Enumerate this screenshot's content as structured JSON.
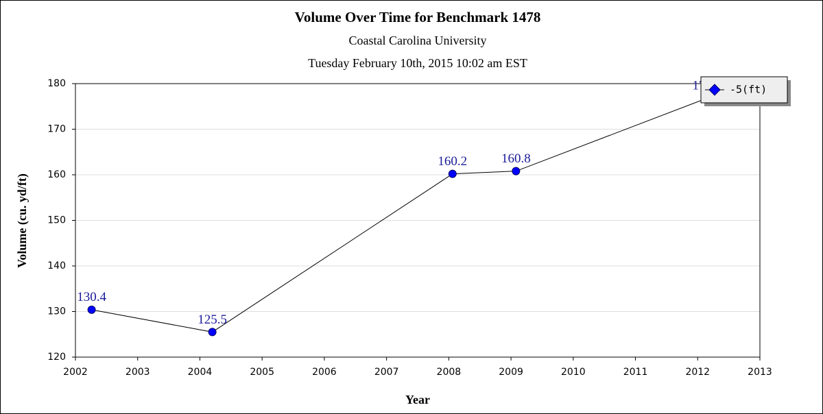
{
  "chart_data": {
    "type": "line",
    "title": "Volume Over Time for Benchmark 1478",
    "subtitle": "Coastal Carolina University",
    "timestamp": "Tuesday February 10th, 2015 10:02 am EST",
    "xlabel": "Year",
    "ylabel": "Volume (cu. yd/ft)",
    "x": [
      2002.26,
      2004.2,
      2008.06,
      2009.08,
      2012.15
    ],
    "series": [
      {
        "name": "-5(ft)",
        "color": "#0000ff",
        "values": [
          130.4,
          125.5,
          160.2,
          160.8,
          176.8
        ]
      }
    ],
    "xlim": [
      2002,
      2013
    ],
    "xticks": [
      2002,
      2003,
      2004,
      2005,
      2006,
      2007,
      2008,
      2009,
      2010,
      2011,
      2012,
      2013
    ],
    "ylim": [
      120,
      180
    ],
    "yticks": [
      120,
      130,
      140,
      150,
      160,
      170,
      180
    ],
    "grid": true,
    "legend": "upper right"
  }
}
